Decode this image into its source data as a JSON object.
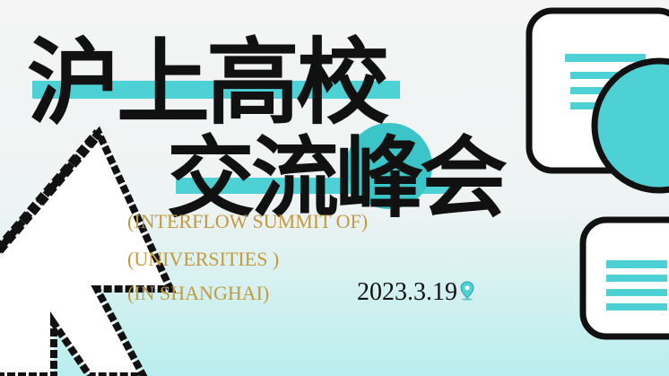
{
  "title": {
    "line1": "沪上高校",
    "line2": "交流峰会"
  },
  "subtitle_lines": [
    "(INTERFLOW SUMMIT OF)",
    "(UNIVERSITIES )",
    "(IN SHANGHAI)"
  ],
  "date": "2023.3.19",
  "colors": {
    "accent": "#4ed1d4",
    "accent_text": "#c49a3e",
    "text": "#111111",
    "background_top": "#f4f5f4",
    "background_bottom": "#b9eeee"
  },
  "icons": [
    "pixel-cursor-icon",
    "monitor-icon",
    "chat-bubble-icon",
    "location-pin-icon"
  ]
}
